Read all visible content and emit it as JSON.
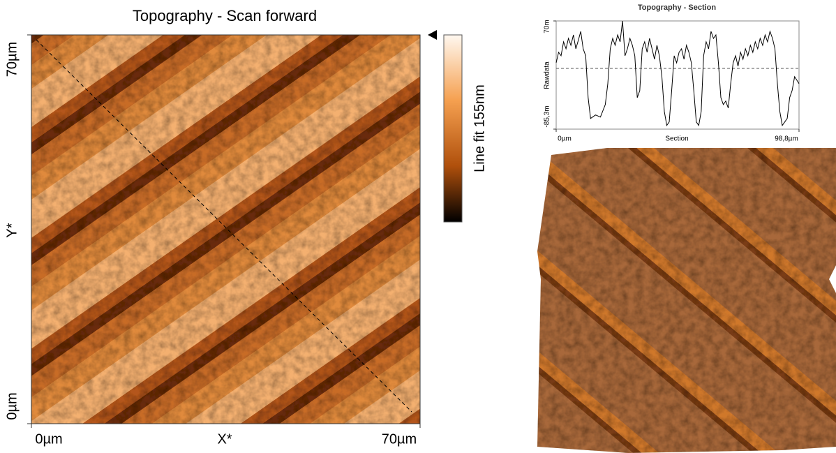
{
  "chart_data": [
    {
      "type": "image",
      "title": "Topography - Scan forward",
      "xlabel": "X*",
      "ylabel": "Y*",
      "xlim": [
        0,
        70
      ],
      "ylim": [
        0,
        70
      ],
      "xticks": [
        {
          "value": 0,
          "label": "0µm"
        },
        {
          "value": 70,
          "label": "70µm"
        }
      ],
      "yticks": [
        {
          "value": 0,
          "label": "0µm"
        },
        {
          "value": 70,
          "label": "70µm"
        }
      ],
      "colorbar_label": "Line fit 155nm"
    },
    {
      "type": "line",
      "title": "Topography - Section",
      "xlabel": "Section",
      "ylabel": "Rawdata",
      "color": "#000000",
      "xlim": [
        0,
        98.8
      ],
      "ylim": [
        -85.3,
        70
      ],
      "xticks": [
        {
          "value": 0,
          "label": "0µm"
        },
        {
          "value": 98.8,
          "label": "98,8µm"
        }
      ],
      "yticks": [
        {
          "value": 70,
          "label": "70m"
        },
        {
          "value": -85.3,
          "label": "-85,3m"
        }
      ],
      "x": [
        0,
        1,
        2,
        3,
        4,
        5,
        6,
        7,
        8,
        9,
        10,
        11,
        12,
        13,
        14,
        16,
        18,
        20,
        21,
        22,
        23,
        24,
        25,
        26,
        27,
        28,
        29,
        30,
        31,
        32,
        33,
        34,
        35,
        36,
        37,
        38,
        39,
        40,
        41,
        42,
        43,
        44,
        45,
        46,
        47,
        48,
        49,
        50,
        51,
        52,
        53,
        54,
        55,
        56,
        57,
        58,
        59,
        60,
        61,
        62,
        63,
        64,
        65,
        66,
        67,
        68,
        69,
        70,
        71,
        72,
        73,
        74,
        75,
        76,
        77,
        78,
        79,
        80,
        81,
        82,
        83,
        84,
        85,
        86,
        87,
        88,
        89,
        90,
        91,
        92,
        93,
        94,
        95,
        96,
        97,
        98.8
      ],
      "values": [
        10,
        25,
        20,
        40,
        30,
        45,
        35,
        50,
        30,
        42,
        55,
        30,
        20,
        -40,
        -70,
        -65,
        -68,
        -50,
        -20,
        30,
        45,
        35,
        50,
        40,
        70,
        20,
        30,
        45,
        35,
        20,
        -40,
        -30,
        30,
        40,
        25,
        45,
        30,
        15,
        35,
        20,
        -10,
        -60,
        -80,
        -75,
        -30,
        20,
        10,
        25,
        30,
        15,
        35,
        25,
        10,
        -30,
        -75,
        -80,
        -60,
        20,
        40,
        30,
        55,
        45,
        50,
        10,
        -40,
        -50,
        -45,
        -55,
        -20,
        10,
        20,
        5,
        25,
        15,
        30,
        20,
        35,
        25,
        40,
        30,
        45,
        35,
        50,
        40,
        55,
        45,
        30,
        -20,
        -60,
        -80,
        -75,
        -70,
        -40,
        -30,
        -10,
        -20
      ]
    }
  ]
}
